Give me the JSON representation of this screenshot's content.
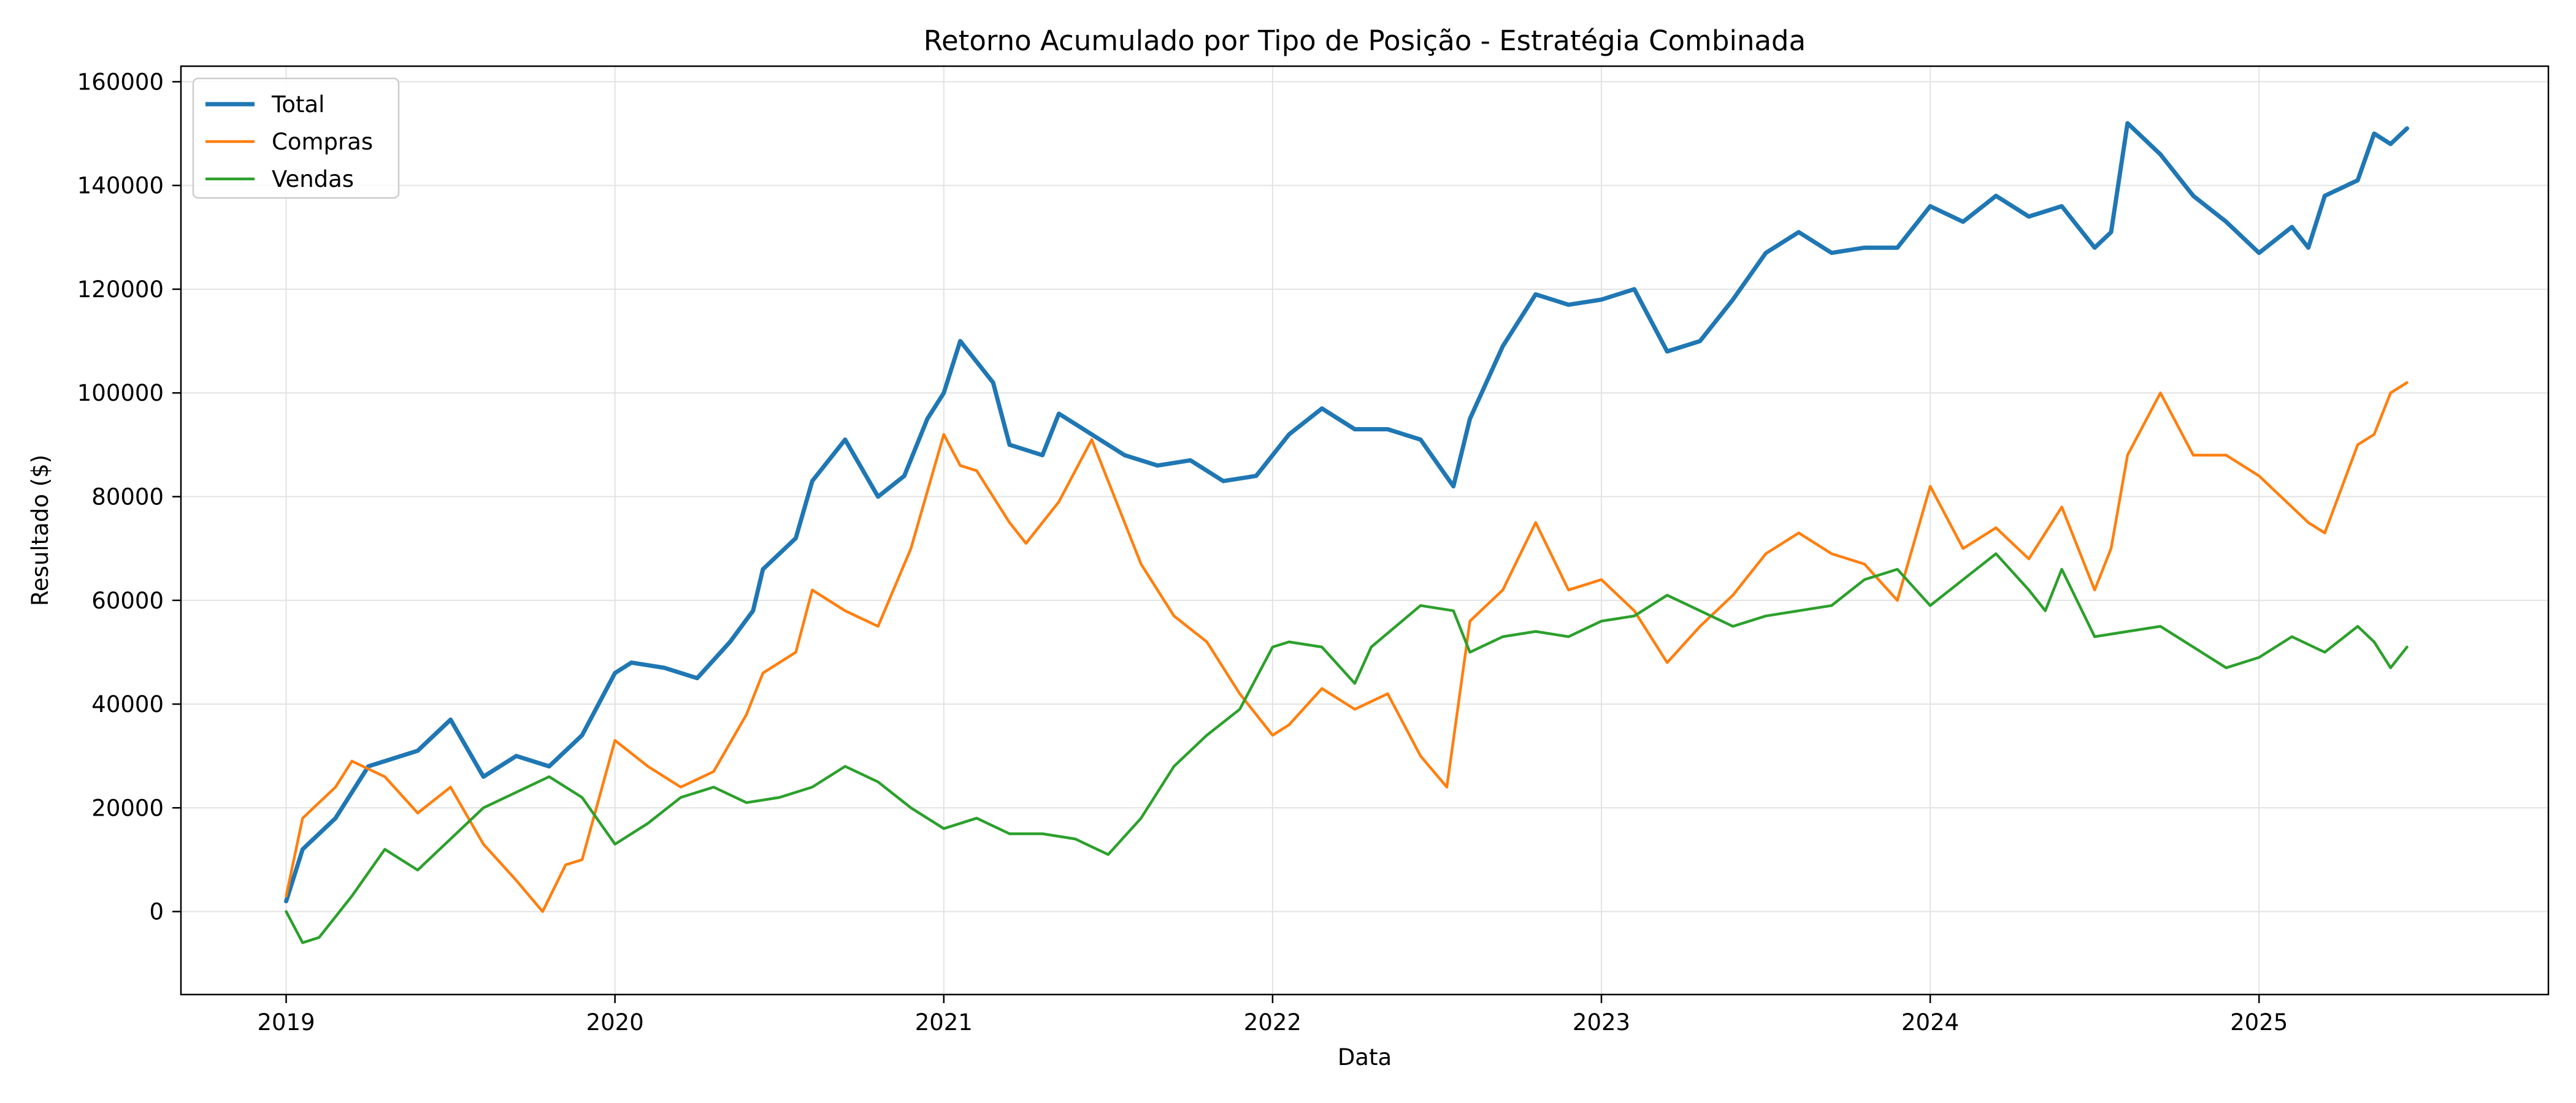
{
  "chart_data": {
    "type": "line",
    "title": "Retorno Acumulado por Tipo de Posição - Estratégia Combinada",
    "xlabel": "Data",
    "ylabel": "Resultado ($)",
    "xlim": [
      2018.68,
      2025.88
    ],
    "ylim": [
      -16000,
      163000
    ],
    "x_ticks": [
      2019,
      2020,
      2021,
      2022,
      2023,
      2024,
      2025
    ],
    "x_tick_labels": [
      "2019",
      "2020",
      "2021",
      "2022",
      "2023",
      "2024",
      "2025"
    ],
    "y_ticks": [
      0,
      20000,
      40000,
      60000,
      80000,
      100000,
      120000,
      140000,
      160000
    ],
    "y_tick_labels": [
      "0",
      "20000",
      "40000",
      "60000",
      "80000",
      "100000",
      "120000",
      "140000",
      "160000"
    ],
    "grid": true,
    "legend_position": "top-left",
    "series": [
      {
        "name": "Total",
        "color": "#1f77b4",
        "x": [
          2019.0,
          2019.05,
          2019.15,
          2019.25,
          2019.4,
          2019.5,
          2019.6,
          2019.7,
          2019.8,
          2019.9,
          2020.0,
          2020.05,
          2020.15,
          2020.25,
          2020.35,
          2020.42,
          2020.45,
          2020.55,
          2020.6,
          2020.7,
          2020.8,
          2020.88,
          2020.95,
          2021.0,
          2021.05,
          2021.15,
          2021.2,
          2021.3,
          2021.35,
          2021.45,
          2021.55,
          2021.65,
          2021.75,
          2021.85,
          2021.95,
          2022.05,
          2022.15,
          2022.25,
          2022.35,
          2022.45,
          2022.55,
          2022.6,
          2022.7,
          2022.8,
          2022.9,
          2023.0,
          2023.1,
          2023.2,
          2023.3,
          2023.4,
          2023.5,
          2023.6,
          2023.7,
          2023.8,
          2023.9,
          2024.0,
          2024.1,
          2024.2,
          2024.3,
          2024.4,
          2024.5,
          2024.55,
          2024.6,
          2024.7,
          2024.8,
          2024.9,
          2025.0,
          2025.1,
          2025.15,
          2025.2,
          2025.3,
          2025.35,
          2025.4,
          2025.45
        ],
        "values": [
          2000,
          12000,
          18000,
          28000,
          31000,
          37000,
          26000,
          30000,
          28000,
          34000,
          46000,
          48000,
          47000,
          45000,
          52000,
          58000,
          66000,
          72000,
          83000,
          91000,
          80000,
          84000,
          95000,
          100000,
          110000,
          102000,
          90000,
          88000,
          96000,
          92000,
          88000,
          86000,
          87000,
          83000,
          84000,
          92000,
          97000,
          93000,
          93000,
          91000,
          82000,
          95000,
          109000,
          119000,
          117000,
          118000,
          120000,
          108000,
          110000,
          118000,
          127000,
          131000,
          127000,
          128000,
          128000,
          136000,
          133000,
          138000,
          134000,
          136000,
          128000,
          131000,
          152000,
          146000,
          138000,
          133000,
          127000,
          132000,
          128000,
          138000,
          141000,
          150000,
          148000,
          151000
        ]
      },
      {
        "name": "Compras",
        "color": "#ff7f0e",
        "x": [
          2019.0,
          2019.05,
          2019.15,
          2019.2,
          2019.3,
          2019.4,
          2019.5,
          2019.6,
          2019.7,
          2019.78,
          2019.85,
          2019.9,
          2020.0,
          2020.1,
          2020.2,
          2020.3,
          2020.4,
          2020.45,
          2020.55,
          2020.6,
          2020.7,
          2020.8,
          2020.9,
          2021.0,
          2021.05,
          2021.1,
          2021.2,
          2021.25,
          2021.35,
          2021.45,
          2021.55,
          2021.6,
          2021.7,
          2021.8,
          2021.9,
          2022.0,
          2022.05,
          2022.15,
          2022.25,
          2022.35,
          2022.45,
          2022.53,
          2022.6,
          2022.7,
          2022.8,
          2022.9,
          2023.0,
          2023.1,
          2023.2,
          2023.3,
          2023.4,
          2023.5,
          2023.6,
          2023.7,
          2023.8,
          2023.9,
          2024.0,
          2024.1,
          2024.2,
          2024.3,
          2024.4,
          2024.5,
          2024.55,
          2024.6,
          2024.7,
          2024.8,
          2024.9,
          2025.0,
          2025.1,
          2025.15,
          2025.2,
          2025.3,
          2025.35,
          2025.4,
          2025.45
        ],
        "values": [
          3000,
          18000,
          24000,
          29000,
          26000,
          19000,
          24000,
          13000,
          6000,
          0,
          9000,
          10000,
          33000,
          28000,
          24000,
          27000,
          38000,
          46000,
          50000,
          62000,
          58000,
          55000,
          70000,
          92000,
          86000,
          85000,
          75000,
          71000,
          79000,
          91000,
          75000,
          67000,
          57000,
          52000,
          42000,
          34000,
          36000,
          43000,
          39000,
          42000,
          30000,
          24000,
          56000,
          62000,
          75000,
          62000,
          64000,
          58000,
          48000,
          55000,
          61000,
          69000,
          73000,
          69000,
          67000,
          60000,
          82000,
          70000,
          74000,
          68000,
          78000,
          62000,
          70000,
          88000,
          100000,
          88000,
          88000,
          84000,
          78000,
          75000,
          73000,
          90000,
          92000,
          100000,
          102000
        ]
      },
      {
        "name": "Vendas",
        "color": "#2ca02c",
        "x": [
          2019.0,
          2019.05,
          2019.1,
          2019.2,
          2019.3,
          2019.4,
          2019.5,
          2019.6,
          2019.7,
          2019.8,
          2019.9,
          2020.0,
          2020.1,
          2020.2,
          2020.3,
          2020.4,
          2020.5,
          2020.6,
          2020.7,
          2020.8,
          2020.9,
          2021.0,
          2021.1,
          2021.2,
          2021.3,
          2021.4,
          2021.5,
          2021.6,
          2021.7,
          2021.8,
          2021.9,
          2022.0,
          2022.05,
          2022.15,
          2022.25,
          2022.3,
          2022.45,
          2022.55,
          2022.6,
          2022.7,
          2022.8,
          2022.9,
          2023.0,
          2023.1,
          2023.2,
          2023.3,
          2023.4,
          2023.5,
          2023.6,
          2023.7,
          2023.8,
          2023.9,
          2024.0,
          2024.1,
          2024.2,
          2024.3,
          2024.35,
          2024.4,
          2024.5,
          2024.6,
          2024.7,
          2024.8,
          2024.9,
          2025.0,
          2025.1,
          2025.2,
          2025.3,
          2025.35,
          2025.4,
          2025.45
        ],
        "values": [
          0,
          -6000,
          -5000,
          3000,
          12000,
          8000,
          14000,
          20000,
          23000,
          26000,
          22000,
          13000,
          17000,
          22000,
          24000,
          21000,
          22000,
          24000,
          28000,
          25000,
          20000,
          16000,
          18000,
          15000,
          15000,
          14000,
          11000,
          18000,
          28000,
          34000,
          39000,
          51000,
          52000,
          51000,
          44000,
          51000,
          59000,
          58000,
          50000,
          53000,
          54000,
          53000,
          56000,
          57000,
          61000,
          58000,
          55000,
          57000,
          58000,
          59000,
          64000,
          66000,
          59000,
          64000,
          69000,
          62000,
          58000,
          66000,
          53000,
          54000,
          55000,
          51000,
          47000,
          49000,
          53000,
          50000,
          55000,
          52000,
          47000,
          51000
        ]
      }
    ]
  }
}
